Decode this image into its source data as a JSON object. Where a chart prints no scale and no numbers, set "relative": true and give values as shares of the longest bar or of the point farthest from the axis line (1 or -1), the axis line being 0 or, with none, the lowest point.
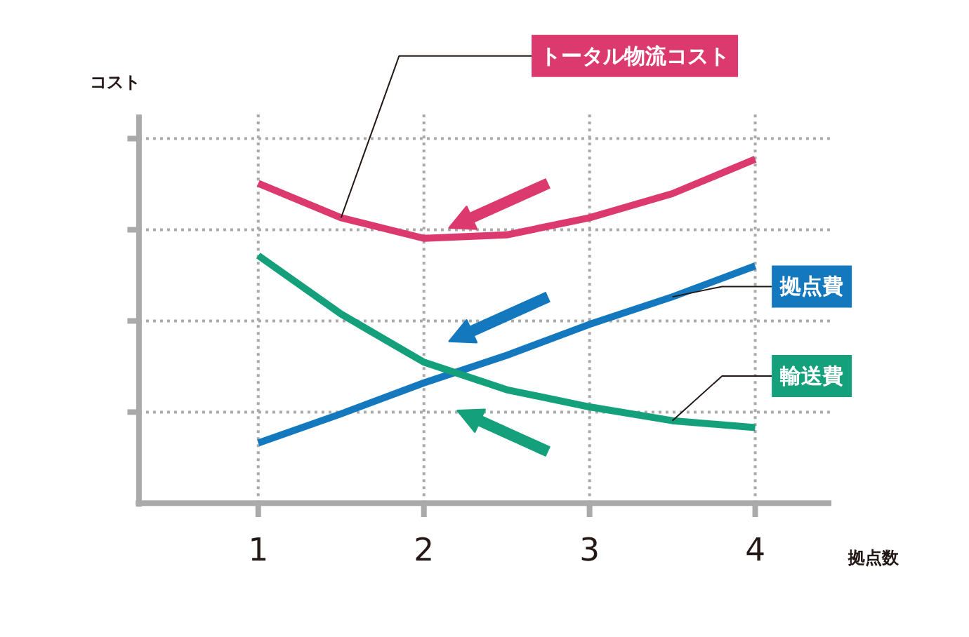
{
  "chart_data": {
    "type": "line",
    "relative": true,
    "xlabel": "拠点数",
    "ylabel": "コスト",
    "xlim": [
      0.28,
      4.46
    ],
    "xticks": [
      1,
      2,
      3,
      4
    ],
    "grid": true,
    "legend": false,
    "marker": "none",
    "line_style": "solid",
    "x": [
      1,
      1.5,
      2,
      2.5,
      3,
      3.5,
      4
    ],
    "series": [
      {
        "name": "トータル物流コスト",
        "color": "#dc3a6e",
        "values": [
          0.93,
          0.83,
          0.77,
          0.78,
          0.83,
          0.9,
          1.0
        ]
      },
      {
        "name": "拠点費",
        "color": "#1478be",
        "values": [
          0.175,
          0.26,
          0.35,
          0.43,
          0.52,
          0.6,
          0.69
        ]
      },
      {
        "name": "輸送費",
        "color": "#14a07a",
        "values": [
          0.72,
          0.55,
          0.41,
          0.33,
          0.28,
          0.24,
          0.22
        ]
      }
    ]
  }
}
